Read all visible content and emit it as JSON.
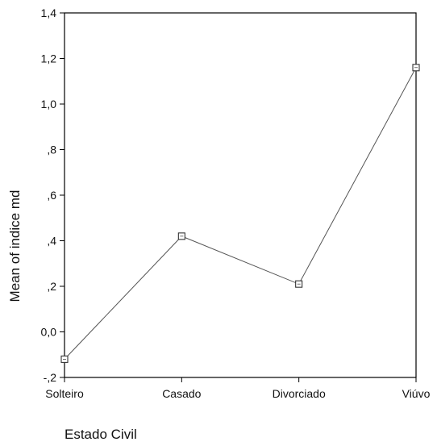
{
  "chart_data": {
    "type": "line",
    "categories": [
      "Solteiro",
      "Casado",
      "Divorciado",
      "Viúvo"
    ],
    "values": [
      -0.12,
      0.42,
      0.21,
      1.16
    ],
    "xlabel": "Estado Civil",
    "ylabel": "Mean of indice md",
    "ylim": [
      -0.2,
      1.4
    ],
    "yticks": [
      -0.2,
      0.0,
      0.2,
      0.4,
      0.6,
      0.8,
      1.0,
      1.2,
      1.4
    ],
    "ytick_labels": [
      "-,2",
      "0,0",
      ",2",
      ",4",
      ",6",
      ",8",
      "1,0",
      "1,2",
      "1,4"
    ],
    "grid": false,
    "line_color": "#555555",
    "marker": "square"
  }
}
